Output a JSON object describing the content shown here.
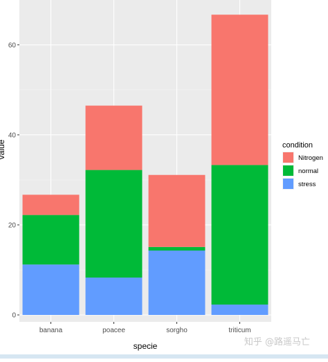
{
  "chart_data": {
    "type": "bar",
    "stacked": true,
    "xlabel": "specie",
    "ylabel": "value",
    "categories": [
      "banana",
      "poacee",
      "sorgho",
      "triticum"
    ],
    "series": [
      {
        "name": "stress",
        "color": "#619CFF",
        "values": [
          11.2,
          8.3,
          14.3,
          2.3
        ]
      },
      {
        "name": "normal",
        "color": "#00BA38",
        "values": [
          11.0,
          23.9,
          0.8,
          31.0
        ]
      },
      {
        "name": "Nitrogen",
        "color": "#F8766D",
        "values": [
          4.5,
          14.3,
          16.0,
          33.4
        ]
      }
    ],
    "ylim": [
      0,
      67.5
    ],
    "yticks": [
      0,
      20,
      40,
      60
    ],
    "grid": true,
    "background": "#EBEBEB",
    "legend": {
      "title": "condition",
      "position": "right",
      "entries": [
        "Nitrogen",
        "normal",
        "stress"
      ]
    }
  },
  "watermark": "知乎 @路遥马亡"
}
